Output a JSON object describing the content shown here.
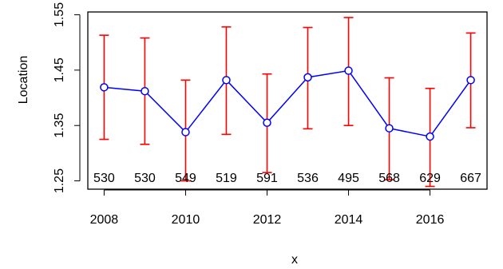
{
  "chart_data": {
    "type": "line",
    "title": "",
    "xlabel": "x",
    "ylabel": "Location",
    "x": [
      2008,
      2009,
      2010,
      2011,
      2012,
      2013,
      2014,
      2015,
      2016,
      2017
    ],
    "series": [
      {
        "values": [
          1.419,
          1.412,
          1.338,
          1.432,
          1.355,
          1.437,
          1.449,
          1.345,
          1.33,
          1.432
        ],
        "lower": [
          1.325,
          1.316,
          1.25,
          1.334,
          1.265,
          1.344,
          1.35,
          1.252,
          1.24,
          1.346
        ],
        "upper": [
          1.513,
          1.508,
          1.432,
          1.528,
          1.443,
          1.527,
          1.545,
          1.436,
          1.417,
          1.517
        ],
        "counts": [
          "530",
          "530",
          "549",
          "519",
          "591",
          "536",
          "495",
          "568",
          "629",
          "667"
        ]
      }
    ],
    "xlim": [
      2007.6,
      2017.4
    ],
    "ylim": [
      1.235,
      1.555
    ],
    "x_ticks": [
      "2008",
      "2010",
      "2012",
      "2014",
      "2016"
    ],
    "y_ticks": [
      "1.25",
      "1.35",
      "1.45",
      "1.55"
    ],
    "grid": false,
    "colors": {
      "line": "#0000FF",
      "error_bars": "#FF0000",
      "text": "#000000",
      "box": "#000000"
    }
  }
}
